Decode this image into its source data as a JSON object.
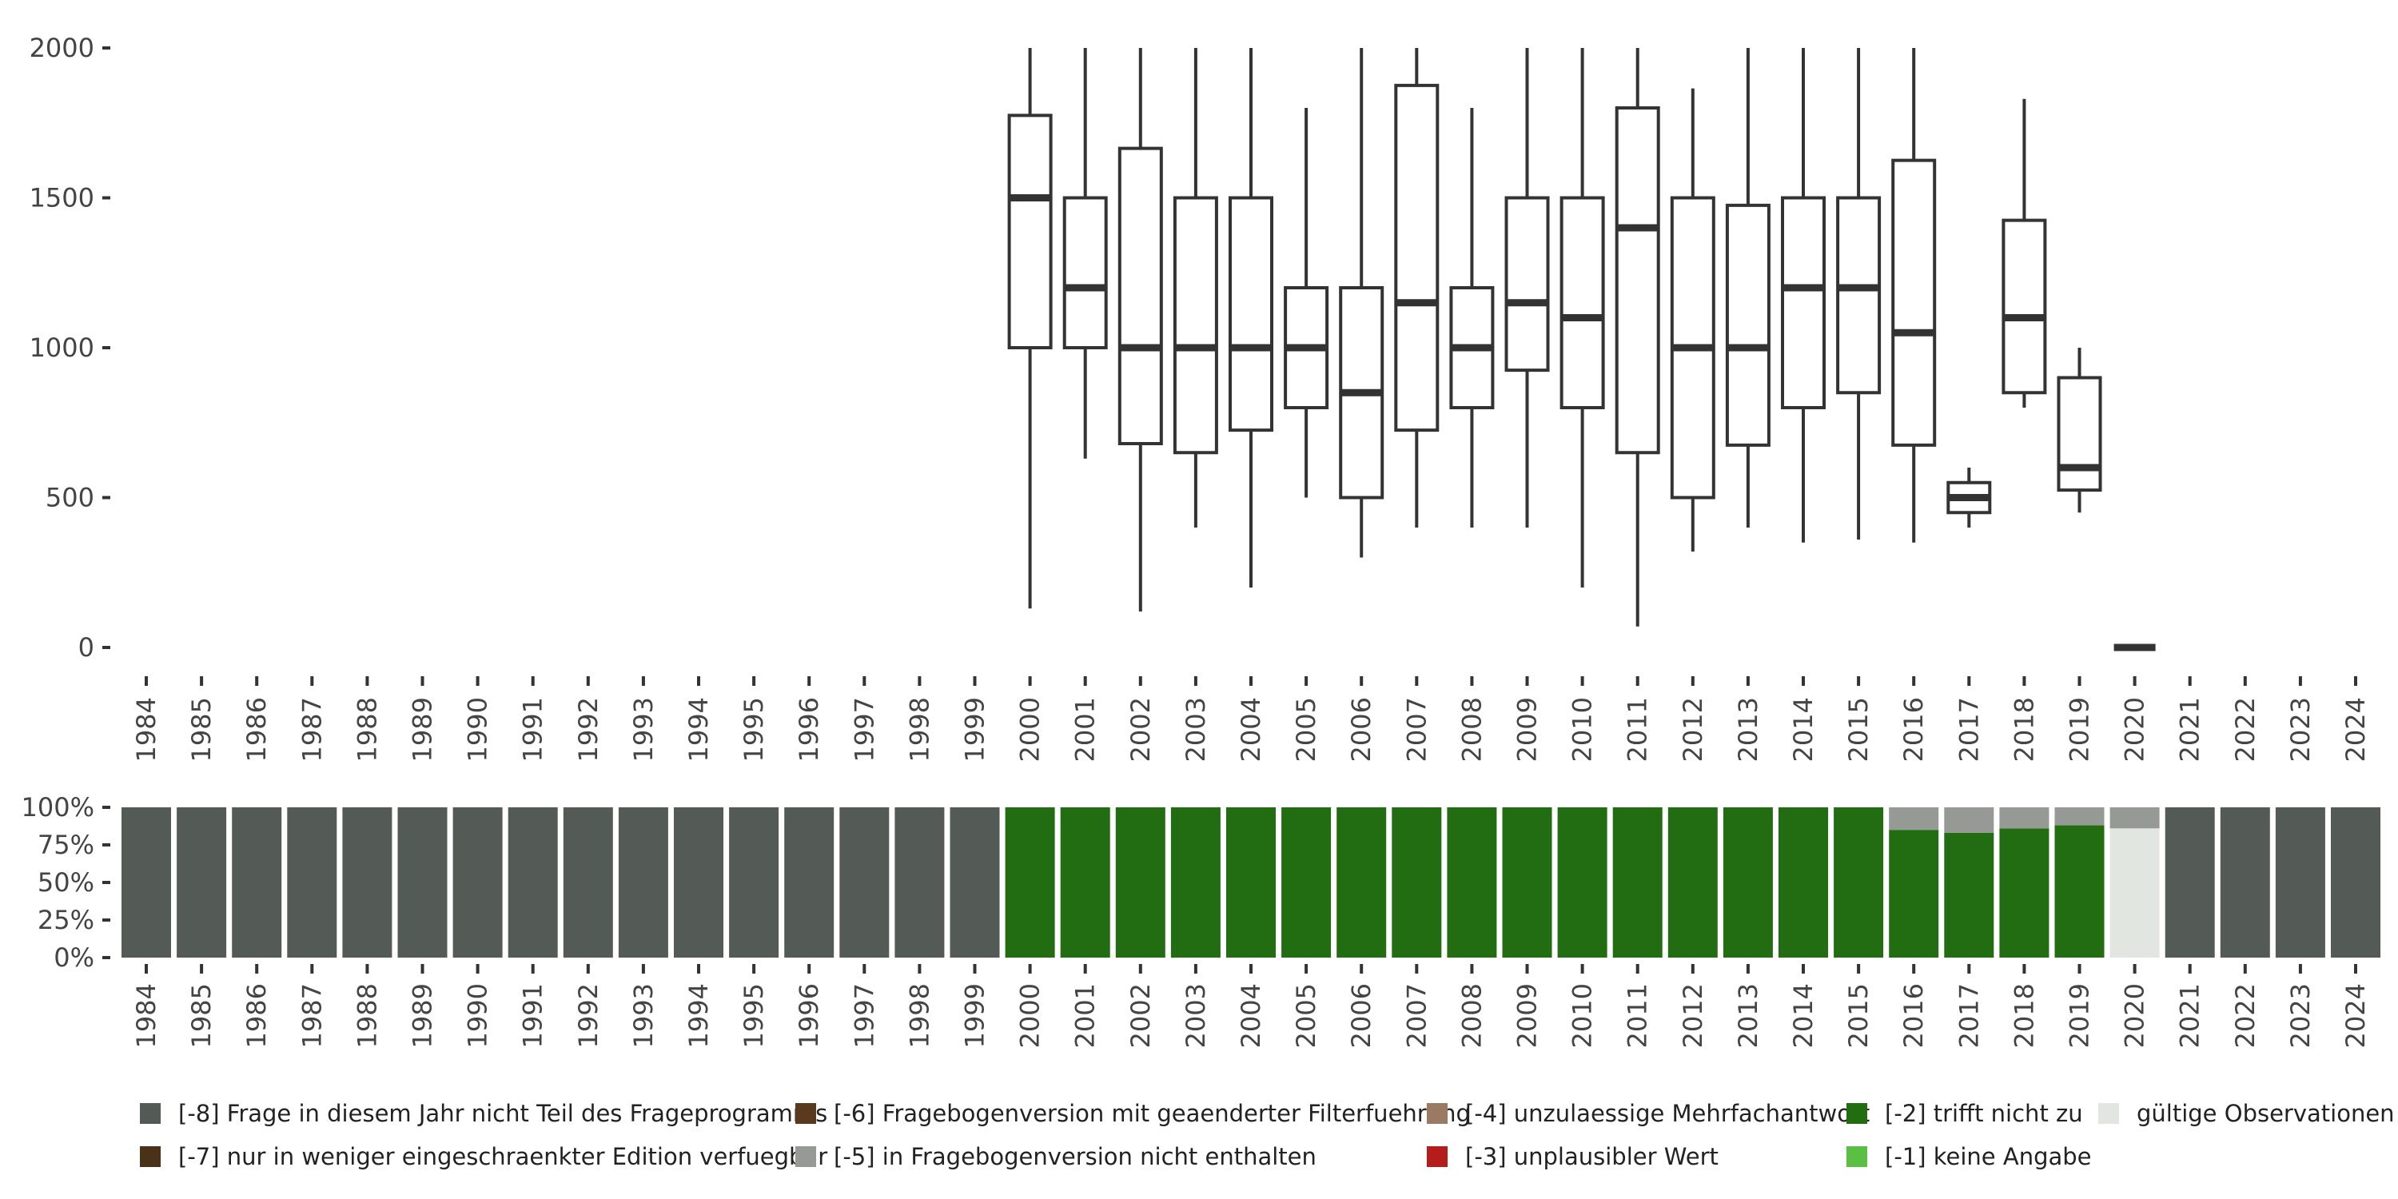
{
  "chart_data": [
    {
      "type": "box",
      "ylim": [
        0,
        2000
      ],
      "y_ticks": [
        0,
        500,
        1000,
        1500,
        2000
      ],
      "categories": [
        "1984",
        "1985",
        "1986",
        "1987",
        "1988",
        "1989",
        "1990",
        "1991",
        "1992",
        "1993",
        "1994",
        "1995",
        "1996",
        "1997",
        "1998",
        "1999",
        "2000",
        "2001",
        "2002",
        "2003",
        "2004",
        "2005",
        "2006",
        "2007",
        "2008",
        "2009",
        "2010",
        "2011",
        "2012",
        "2013",
        "2014",
        "2015",
        "2016",
        "2017",
        "2018",
        "2019",
        "2020",
        "2021",
        "2022",
        "2023",
        "2024"
      ],
      "boxes": [
        {
          "year": "2000",
          "min": 130,
          "q1": 1000,
          "median": 1500,
          "q3": 1775,
          "max": 2000
        },
        {
          "year": "2001",
          "min": 630,
          "q1": 1000,
          "median": 1200,
          "q3": 1500,
          "max": 2000
        },
        {
          "year": "2002",
          "min": 120,
          "q1": 680,
          "median": 1000,
          "q3": 1665,
          "max": 2000
        },
        {
          "year": "2003",
          "min": 400,
          "q1": 650,
          "median": 1000,
          "q3": 1500,
          "max": 2000
        },
        {
          "year": "2004",
          "min": 200,
          "q1": 725,
          "median": 1000,
          "q3": 1500,
          "max": 2000
        },
        {
          "year": "2005",
          "min": 500,
          "q1": 800,
          "median": 1000,
          "q3": 1200,
          "max": 1800
        },
        {
          "year": "2006",
          "min": 300,
          "q1": 500,
          "median": 850,
          "q3": 1200,
          "max": 2000
        },
        {
          "year": "2007",
          "min": 400,
          "q1": 725,
          "median": 1150,
          "q3": 1875,
          "max": 2000
        },
        {
          "year": "2008",
          "min": 400,
          "q1": 800,
          "median": 1000,
          "q3": 1200,
          "max": 1800
        },
        {
          "year": "2009",
          "min": 400,
          "q1": 925,
          "median": 1150,
          "q3": 1500,
          "max": 2000
        },
        {
          "year": "2010",
          "min": 200,
          "q1": 800,
          "median": 1100,
          "q3": 1500,
          "max": 2000
        },
        {
          "year": "2011",
          "min": 70,
          "q1": 650,
          "median": 1400,
          "q3": 1800,
          "max": 2000
        },
        {
          "year": "2012",
          "min": 320,
          "q1": 500,
          "median": 1000,
          "q3": 1500,
          "max": 1865
        },
        {
          "year": "2013",
          "min": 400,
          "q1": 675,
          "median": 1000,
          "q3": 1475,
          "max": 2000
        },
        {
          "year": "2014",
          "min": 350,
          "q1": 800,
          "median": 1200,
          "q3": 1500,
          "max": 2000
        },
        {
          "year": "2015",
          "min": 360,
          "q1": 850,
          "median": 1200,
          "q3": 1500,
          "max": 2000
        },
        {
          "year": "2016",
          "min": 350,
          "q1": 675,
          "median": 1050,
          "q3": 1625,
          "max": 2000
        },
        {
          "year": "2017",
          "min": 400,
          "q1": 450,
          "median": 500,
          "q3": 550,
          "max": 600
        },
        {
          "year": "2018",
          "min": 800,
          "q1": 850,
          "median": 1100,
          "q3": 1425,
          "max": 1830
        },
        {
          "year": "2019",
          "min": 450,
          "q1": 525,
          "median": 600,
          "q3": 900,
          "max": 1000
        },
        {
          "year": "2020",
          "min": 0,
          "q1": 0,
          "median": 0,
          "q3": 0,
          "max": 0
        }
      ]
    },
    {
      "type": "stacked-bar",
      "y_ticks": [
        "0%",
        "25%",
        "50%",
        "75%",
        "100%"
      ],
      "categories": [
        "1984",
        "1985",
        "1986",
        "1987",
        "1988",
        "1989",
        "1990",
        "1991",
        "1992",
        "1993",
        "1994",
        "1995",
        "1996",
        "1997",
        "1998",
        "1999",
        "2000",
        "2001",
        "2002",
        "2003",
        "2004",
        "2005",
        "2006",
        "2007",
        "2008",
        "2009",
        "2010",
        "2011",
        "2012",
        "2013",
        "2014",
        "2015",
        "2016",
        "2017",
        "2018",
        "2019",
        "2020",
        "2021",
        "2022",
        "2023",
        "2024"
      ],
      "series": [
        {
          "name": "[-8] Frage in diesem Jahr nicht Teil des Frageprogramms",
          "color": "#545b56",
          "values": [
            1,
            1,
            1,
            1,
            1,
            1,
            1,
            1,
            1,
            1,
            1,
            1,
            1,
            1,
            1,
            1,
            0,
            0,
            0,
            0,
            0,
            0,
            0,
            0,
            0,
            0,
            0,
            0,
            0,
            0,
            0,
            0,
            0,
            0,
            0,
            0,
            0,
            1,
            1,
            1,
            1
          ]
        },
        {
          "name": "[-5] in Fragebogenversion nicht enthalten",
          "color": "#959a94",
          "values": [
            0,
            0,
            0,
            0,
            0,
            0,
            0,
            0,
            0,
            0,
            0,
            0,
            0,
            0,
            0,
            0,
            0,
            0,
            0,
            0,
            0,
            0,
            0,
            0,
            0,
            0,
            0,
            0,
            0,
            0,
            0,
            0,
            0.15,
            0.17,
            0.14,
            0.12,
            0.14,
            0,
            0,
            0,
            0
          ]
        },
        {
          "name": "[-2] trifft nicht zu",
          "color": "#226c12",
          "values": [
            0,
            0,
            0,
            0,
            0,
            0,
            0,
            0,
            0,
            0,
            0,
            0,
            0,
            0,
            0,
            0,
            1,
            1,
            1,
            1,
            1,
            1,
            1,
            1,
            1,
            1,
            1,
            1,
            1,
            1,
            1,
            1,
            0.85,
            0.83,
            0.86,
            0.88,
            0,
            0,
            0,
            0,
            0
          ]
        },
        {
          "name": "gültige Observationen",
          "color": "#e1e6e0",
          "values": [
            0,
            0,
            0,
            0,
            0,
            0,
            0,
            0,
            0,
            0,
            0,
            0,
            0,
            0,
            0,
            0,
            0,
            0,
            0,
            0,
            0,
            0,
            0,
            0,
            0,
            0,
            0,
            0,
            0,
            0,
            0,
            0,
            0,
            0,
            0,
            0,
            0.86,
            0,
            0,
            0,
            0
          ]
        }
      ]
    }
  ],
  "legend": [
    {
      "label": "[-8] Frage in diesem Jahr nicht Teil des Frageprogramms",
      "color": "#545b56"
    },
    {
      "label": "[-6] Fragebogenversion mit geaenderter Filterfuehrung",
      "color": "#5a3a1e"
    },
    {
      "label": "[-4] unzulaessige Mehrfachantwort",
      "color": "#9a7a62"
    },
    {
      "label": "[-2] trifft nicht zu",
      "color": "#226c12"
    },
    {
      "label": "gültige Observationen",
      "color": "#e1e6e0"
    },
    {
      "label": "[-7] nur in weniger eingeschraenkter Edition verfuegbar",
      "color": "#4a3218"
    },
    {
      "label": "[-5] in Fragebogenversion nicht enthalten",
      "color": "#959a94"
    },
    {
      "label": "[-3] unplausibler Wert",
      "color": "#b51c1c"
    },
    {
      "label": "[-1] keine Angabe",
      "color": "#5bbf43"
    }
  ]
}
